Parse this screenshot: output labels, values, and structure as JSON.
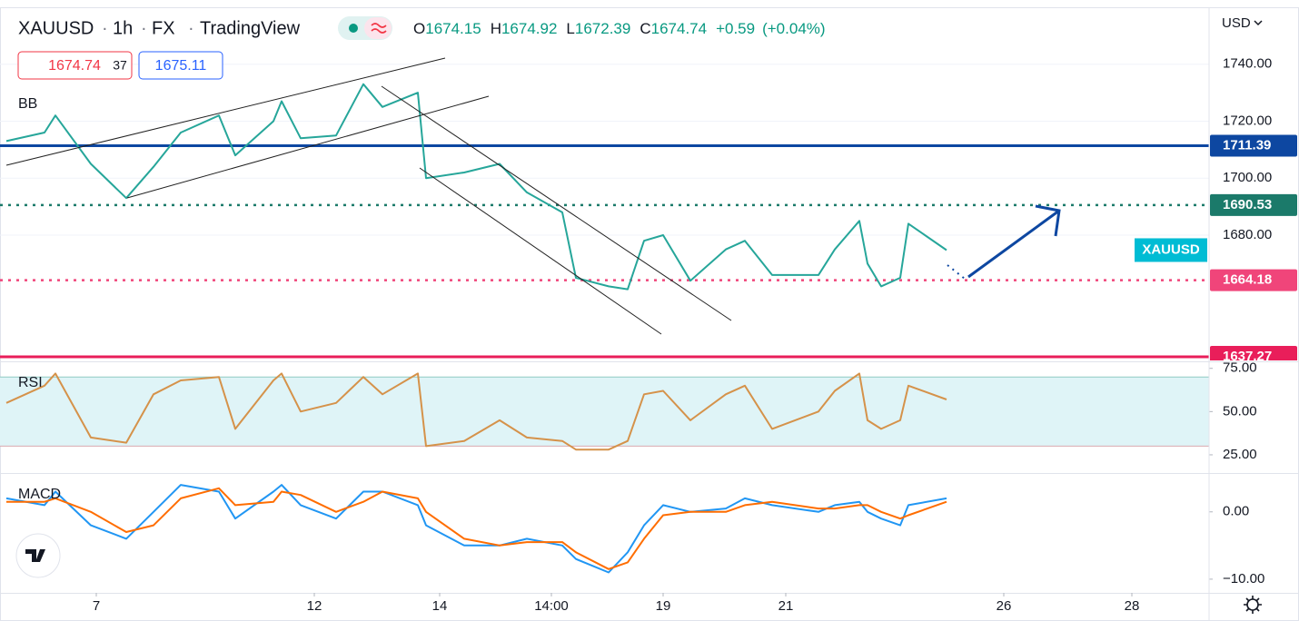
{
  "header": {
    "symbol": "XAUUSD",
    "interval": "1h",
    "exchange": "FX",
    "source": "TradingView",
    "ohlc": [
      {
        "label": "O",
        "value": 1674.15
      },
      {
        "label": "H",
        "value": 1674.92
      },
      {
        "label": "L",
        "value": 1672.39
      },
      {
        "label": "C",
        "value": 1674.74
      }
    ],
    "change": "+0.59",
    "change_pct": "(+0.04%)",
    "sell": 1674.74,
    "spread": 37,
    "buy": 1675.11,
    "currency": "USD"
  },
  "chart_data": [
    {
      "type": "line",
      "label": "BB",
      "xlim": [
        0,
        441
      ],
      "xticks": [
        {
          "value": 33,
          "label": "7"
        },
        {
          "value": 113,
          "label": "12"
        },
        {
          "value": 159,
          "label": "14"
        },
        {
          "value": 200,
          "label": "14:00"
        },
        {
          "value": 241,
          "label": "19"
        },
        {
          "value": 286,
          "label": "21"
        },
        {
          "value": 366,
          "label": "26"
        },
        {
          "value": 413,
          "label": "28"
        }
      ],
      "ylim": [
        1636,
        1760
      ],
      "yticks": [
        {
          "value": 1680,
          "label": "1680.00"
        },
        {
          "value": 1700,
          "label": "1700.00"
        },
        {
          "value": 1720,
          "label": "1720.00"
        },
        {
          "value": 1740,
          "label": "1740.00"
        }
      ],
      "grid": true,
      "series": [
        {
          "color": "#26a69a",
          "x": [
            0,
            14,
            18,
            31,
            44,
            54,
            64,
            78,
            84,
            98,
            101,
            108,
            121,
            131,
            138,
            151,
            154,
            168,
            181,
            191,
            204,
            209,
            221,
            228,
            234,
            241,
            251,
            264,
            271,
            281,
            298,
            304,
            313,
            316,
            321,
            328,
            331,
            345
          ],
          "values": [
            1713,
            1716,
            1722,
            1705,
            1693,
            1704,
            1716,
            1722,
            1708,
            1720,
            1727,
            1714,
            1715,
            1733,
            1725,
            1730,
            1700,
            1702,
            1705,
            1695,
            1688,
            1665,
            1662,
            1661,
            1678,
            1680,
            1664,
            1675,
            1678,
            1666,
            1666,
            1675,
            1685,
            1670,
            1662,
            1665,
            1684,
            1674.74
          ]
        }
      ],
      "symbol_badge": "XAUUSD",
      "hlines": [
        {
          "value": 1711.39,
          "color": "#0d47a1",
          "style": "solid"
        },
        {
          "value": 1690.53,
          "color": "#1b7a6a",
          "style": "dotted"
        },
        {
          "value": 1664.18,
          "color": "#f0457a",
          "style": "dotted"
        },
        {
          "value": 1637.27,
          "color": "#e91e5a",
          "style": "solid"
        }
      ]
    },
    {
      "type": "line",
      "label": "RSI",
      "ylim": [
        15,
        78
      ],
      "yticks": [
        {
          "value": 25,
          "label": "25.00"
        },
        {
          "value": 50,
          "label": "50.00"
        },
        {
          "value": 75,
          "label": "75.00"
        }
      ],
      "band": [
        30,
        70
      ],
      "series": [
        {
          "color": "#d5924a",
          "x": [
            0,
            14,
            18,
            31,
            44,
            54,
            64,
            78,
            84,
            98,
            101,
            108,
            121,
            131,
            138,
            151,
            154,
            168,
            181,
            191,
            204,
            209,
            221,
            228,
            234,
            241,
            251,
            264,
            271,
            281,
            298,
            304,
            313,
            316,
            321,
            328,
            331,
            345
          ],
          "values": [
            55,
            65,
            72,
            35,
            32,
            60,
            68,
            70,
            40,
            68,
            72,
            50,
            55,
            70,
            60,
            72,
            30,
            33,
            45,
            35,
            33,
            28,
            28,
            33,
            60,
            62,
            45,
            60,
            65,
            40,
            50,
            62,
            72,
            45,
            40,
            45,
            65,
            57
          ]
        }
      ]
    },
    {
      "type": "line",
      "label": "MACD",
      "ylim": [
        -11.9,
        5.5
      ],
      "yticks": [
        {
          "value": -10,
          "label": "−10.00"
        },
        {
          "value": 0,
          "label": "0.00"
        }
      ],
      "series": [
        {
          "color": "#2196f3",
          "x": [
            0,
            14,
            18,
            31,
            44,
            54,
            64,
            78,
            84,
            98,
            101,
            108,
            121,
            131,
            138,
            151,
            154,
            168,
            181,
            191,
            204,
            209,
            221,
            228,
            234,
            241,
            251,
            264,
            271,
            281,
            298,
            304,
            313,
            316,
            321,
            328,
            331,
            345
          ],
          "values": [
            2,
            1,
            3,
            -2,
            -4,
            0,
            4,
            3,
            -1,
            3,
            4,
            1,
            -1,
            3,
            3,
            1,
            -2,
            -5,
            -5,
            -4,
            -5,
            -7,
            -9,
            -6,
            -2,
            1,
            0,
            0.5,
            2,
            1,
            0,
            1,
            1.5,
            0,
            -1,
            -2,
            1,
            2
          ]
        },
        {
          "color": "#ff6d00",
          "x": [
            0,
            14,
            18,
            31,
            44,
            54,
            64,
            78,
            84,
            98,
            101,
            108,
            121,
            131,
            138,
            151,
            154,
            168,
            181,
            191,
            204,
            209,
            221,
            228,
            234,
            241,
            251,
            264,
            271,
            281,
            298,
            304,
            313,
            316,
            321,
            328,
            331,
            345
          ],
          "values": [
            1.5,
            1.5,
            2,
            0,
            -3,
            -2,
            2,
            3.5,
            1,
            1.5,
            3,
            2.5,
            0,
            1.5,
            3,
            2,
            0,
            -4,
            -5,
            -4.5,
            -4.5,
            -6,
            -8.5,
            -7.5,
            -4,
            -0.5,
            0,
            0,
            1,
            1.5,
            0.5,
            0.5,
            1,
            1,
            0,
            -1,
            -0.5,
            1.5
          ]
        }
      ]
    }
  ]
}
